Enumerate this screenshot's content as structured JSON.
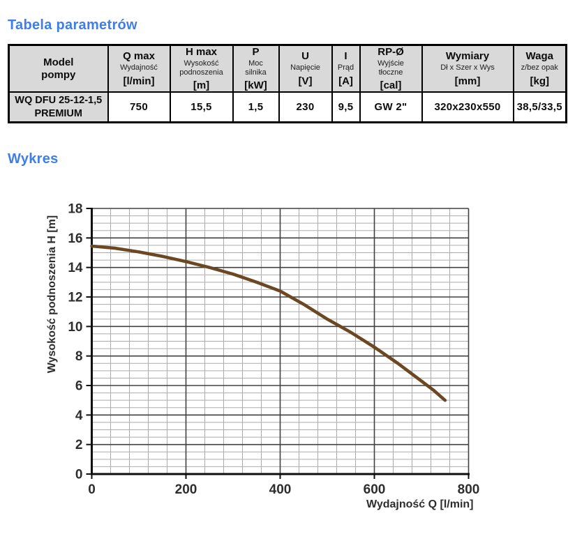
{
  "sections": {
    "table_title": "Tabela parametrów",
    "chart_title": "Wykres"
  },
  "colors": {
    "accent": "#3e7ee9",
    "table_header_bg": "#d9d9d9",
    "curve": "#6b4722",
    "grid_minor": "#ababab",
    "grid_major": "#404040",
    "axis": "#0d0d0d",
    "chart_text": "#2d2d2d"
  },
  "table": {
    "headers": [
      {
        "title": "Model\npompy",
        "subtitle": "",
        "unit": ""
      },
      {
        "title": "Q max",
        "subtitle": "Wydajność",
        "unit": "[l/min]"
      },
      {
        "title": "H max",
        "subtitle": "Wysokość\npodnoszenia",
        "unit": "[m]"
      },
      {
        "title": "P",
        "subtitle": "Moc\nsilnika",
        "unit": "[kW]"
      },
      {
        "title": "U",
        "subtitle": "Napięcie",
        "unit": "[V]"
      },
      {
        "title": "I",
        "subtitle": "Prąd",
        "unit": "[A]"
      },
      {
        "title": "RP-Ø",
        "subtitle": "Wyjście\ntłoczne",
        "unit": "[cal]"
      },
      {
        "title": "Wymiary",
        "subtitle": "Dł x Szer x Wys",
        "unit": "[mm]"
      },
      {
        "title": "Waga",
        "subtitle": "z/bez opak",
        "unit": "[kg]"
      }
    ],
    "row": {
      "model": "WQ DFU 25-12-1,5 PREMIUM",
      "values": [
        "750",
        "15,5",
        "1,5",
        "230",
        "9,5",
        "GW 2\"",
        "320x230x550",
        "38,5/33,5"
      ]
    }
  },
  "chart_data": {
    "type": "line",
    "title": "",
    "xlabel": "Wydajność Q [l/min]",
    "ylabel": "Wysokość podnoszenia H [m]",
    "xlim": [
      0,
      800
    ],
    "ylim": [
      0,
      18
    ],
    "x_ticks": [
      0,
      200,
      400,
      600,
      800
    ],
    "y_ticks": [
      0,
      2,
      4,
      6,
      8,
      10,
      12,
      14,
      16,
      18
    ],
    "x_minor_step": 40,
    "y_minor_step": 0.5,
    "grid": true,
    "legend": false,
    "series": [
      {
        "name": "WQ DFU 25-12-1,5 PREMIUM",
        "points": [
          [
            0,
            15.45
          ],
          [
            50,
            15.3
          ],
          [
            100,
            15.05
          ],
          [
            150,
            14.75
          ],
          [
            200,
            14.4
          ],
          [
            250,
            14.0
          ],
          [
            300,
            13.55
          ],
          [
            350,
            13.0
          ],
          [
            400,
            12.4
          ],
          [
            450,
            11.5
          ],
          [
            500,
            10.5
          ],
          [
            550,
            9.6
          ],
          [
            600,
            8.6
          ],
          [
            650,
            7.5
          ],
          [
            700,
            6.3
          ],
          [
            725,
            5.7
          ],
          [
            750,
            5.0
          ]
        ]
      }
    ]
  }
}
